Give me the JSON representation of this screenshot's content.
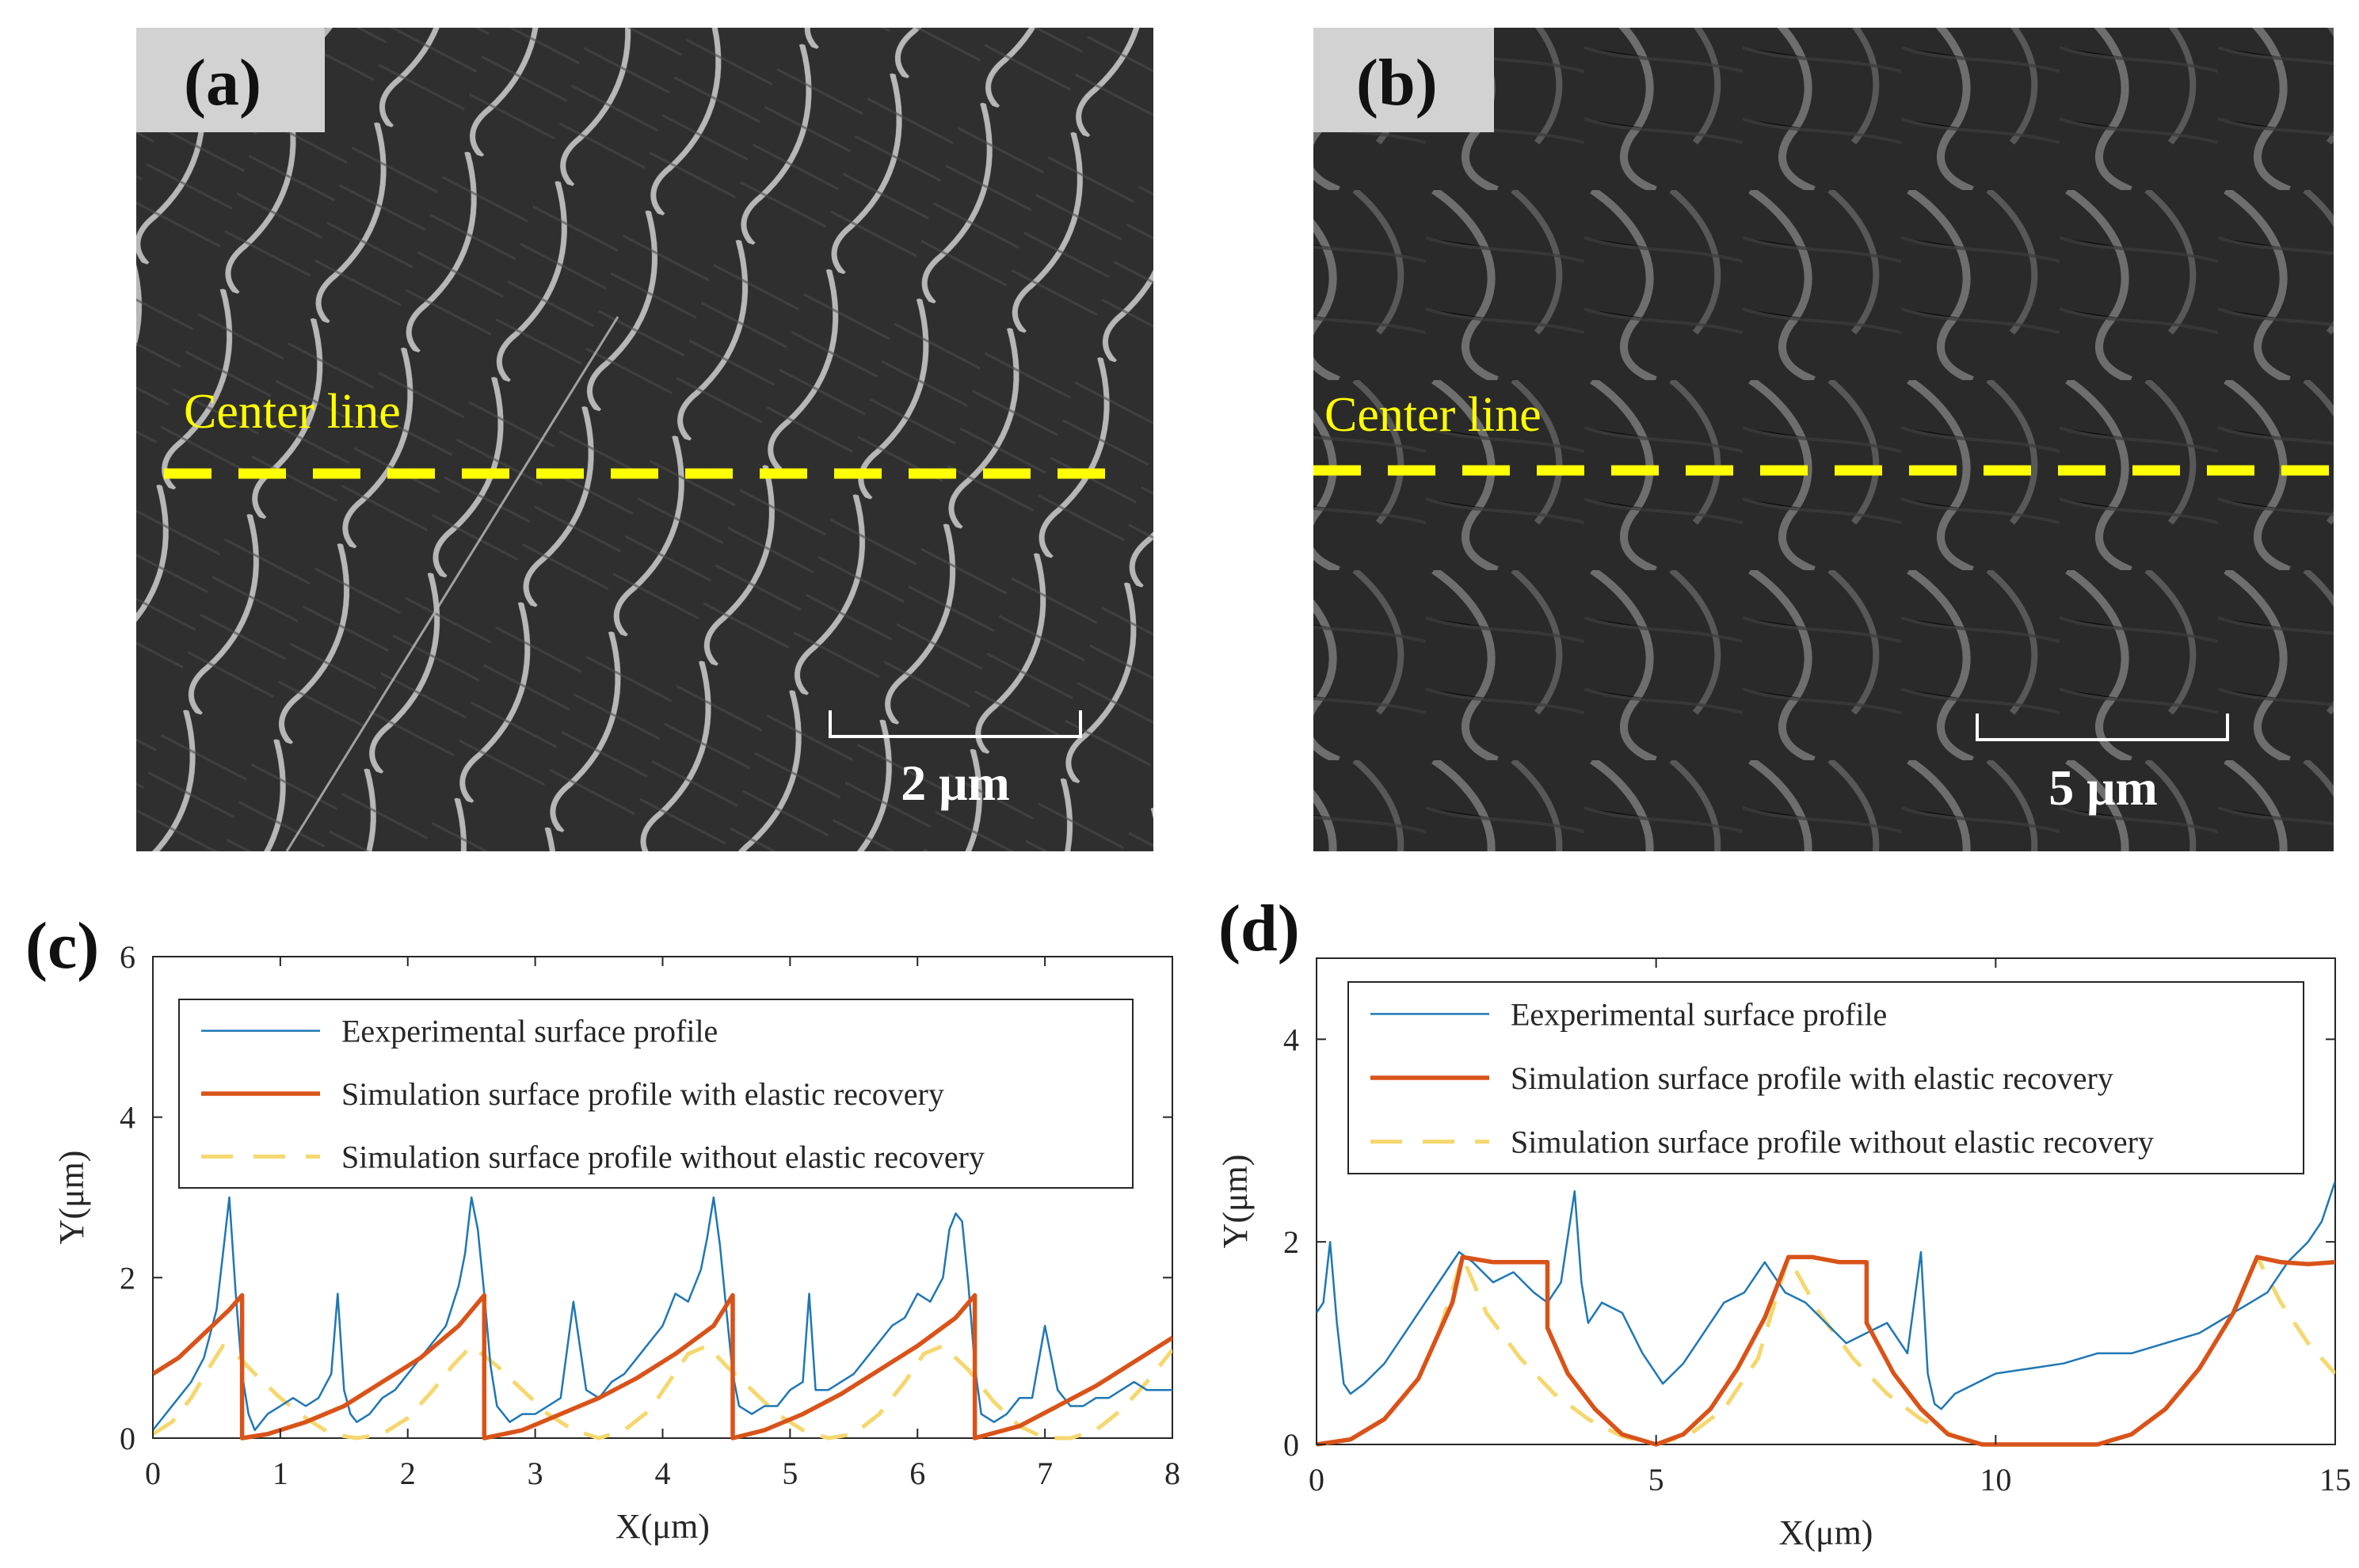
{
  "panels": {
    "a": {
      "label": "(a)",
      "center_line_label": "Center line",
      "scale_bar_label": "2 μm"
    },
    "b": {
      "label": "(b)",
      "center_line_label": "Center line",
      "scale_bar_label": "5 μm"
    },
    "c": {
      "label": "(c)"
    },
    "d": {
      "label": "(d)"
    }
  },
  "colors": {
    "experimental": "#1f77b4",
    "sim_elastic": "#d95319",
    "sim_no_elastic": "#f5d76e",
    "center_line": "#ffff00",
    "sem_bg": "#2e2e2e"
  },
  "chart_data": [
    {
      "panel": "(c)",
      "type": "line",
      "xlabel": "X(μm)",
      "ylabel": "Y(μm)",
      "xlim": [
        0,
        8
      ],
      "ylim": [
        0,
        6
      ],
      "xticks": [
        0,
        1,
        2,
        3,
        4,
        5,
        6,
        7,
        8
      ],
      "yticks": [
        0,
        2,
        4,
        6
      ],
      "legend_position": "top",
      "series": [
        {
          "name": "Eexperimental surface profile",
          "style": "solid-thin",
          "x": [
            0,
            0.1,
            0.2,
            0.3,
            0.4,
            0.5,
            0.55,
            0.6,
            0.65,
            0.7,
            0.75,
            0.8,
            0.9,
            1.0,
            1.1,
            1.2,
            1.3,
            1.4,
            1.45,
            1.5,
            1.55,
            1.6,
            1.7,
            1.8,
            1.9,
            2.0,
            2.1,
            2.2,
            2.3,
            2.4,
            2.45,
            2.5,
            2.55,
            2.6,
            2.65,
            2.7,
            2.8,
            2.9,
            3.0,
            3.1,
            3.2,
            3.3,
            3.4,
            3.5,
            3.6,
            3.7,
            3.8,
            3.9,
            4.0,
            4.1,
            4.2,
            4.3,
            4.35,
            4.4,
            4.45,
            4.5,
            4.55,
            4.6,
            4.7,
            4.8,
            4.9,
            5.0,
            5.1,
            5.15,
            5.2,
            5.3,
            5.4,
            5.5,
            5.6,
            5.7,
            5.8,
            5.9,
            6.0,
            6.1,
            6.2,
            6.25,
            6.3,
            6.35,
            6.4,
            6.45,
            6.5,
            6.6,
            6.7,
            6.8,
            6.9,
            7.0,
            7.1,
            7.2,
            7.3,
            7.4,
            7.5,
            7.6,
            7.7,
            7.8,
            7.9,
            8.0
          ],
          "y": [
            0.1,
            0.3,
            0.5,
            0.7,
            1.0,
            1.6,
            2.3,
            3.0,
            1.8,
            0.8,
            0.3,
            0.1,
            0.3,
            0.4,
            0.5,
            0.4,
            0.5,
            0.8,
            1.8,
            0.6,
            0.3,
            0.2,
            0.3,
            0.5,
            0.6,
            0.8,
            1.0,
            1.2,
            1.4,
            1.9,
            2.3,
            3.0,
            2.6,
            1.8,
            0.9,
            0.4,
            0.2,
            0.3,
            0.3,
            0.4,
            0.5,
            1.7,
            0.6,
            0.5,
            0.7,
            0.8,
            1.0,
            1.2,
            1.4,
            1.8,
            1.7,
            2.1,
            2.5,
            3.0,
            2.4,
            1.6,
            0.8,
            0.4,
            0.3,
            0.4,
            0.4,
            0.6,
            0.7,
            1.8,
            0.6,
            0.6,
            0.7,
            0.8,
            1.0,
            1.2,
            1.4,
            1.5,
            1.8,
            1.7,
            2.0,
            2.6,
            2.8,
            2.7,
            1.9,
            0.9,
            0.3,
            0.2,
            0.3,
            0.5,
            0.5,
            1.4,
            0.6,
            0.4,
            0.4,
            0.5,
            0.5,
            0.6,
            0.7,
            0.6,
            0.6,
            0.6
          ]
        },
        {
          "name": "Simulation surface profile with elastic recovery",
          "style": "solid-thick",
          "x": [
            0,
            0.2,
            0.4,
            0.6,
            0.7,
            0.7,
            0.9,
            1.2,
            1.5,
            1.8,
            2.1,
            2.4,
            2.6,
            2.6,
            2.9,
            3.2,
            3.5,
            3.8,
            4.1,
            4.4,
            4.55,
            4.55,
            4.8,
            5.1,
            5.4,
            5.7,
            6.0,
            6.3,
            6.45,
            6.45,
            6.8,
            7.1,
            7.4,
            7.7,
            8.0
          ],
          "y": [
            0.8,
            1.0,
            1.3,
            1.6,
            1.78,
            0,
            0.05,
            0.2,
            0.4,
            0.7,
            1.0,
            1.4,
            1.78,
            0,
            0.1,
            0.3,
            0.5,
            0.75,
            1.05,
            1.4,
            1.78,
            0,
            0.1,
            0.3,
            0.55,
            0.85,
            1.15,
            1.5,
            1.78,
            0,
            0.15,
            0.4,
            0.65,
            0.95,
            1.25
          ]
        },
        {
          "name": "Simulation surface profile without elastic recovery",
          "style": "dashed",
          "x": [
            0,
            0.15,
            0.3,
            0.45,
            0.55,
            0.65,
            0.8,
            1.0,
            1.2,
            1.4,
            1.6,
            1.8,
            2.0,
            2.2,
            2.35,
            2.5,
            2.7,
            2.9,
            3.1,
            3.3,
            3.5,
            3.7,
            3.9,
            4.05,
            4.2,
            4.35,
            4.5,
            4.7,
            4.9,
            5.1,
            5.3,
            5.5,
            5.7,
            5.9,
            6.05,
            6.2,
            6.4,
            6.6,
            6.8,
            7.0,
            7.2,
            7.4,
            7.6,
            7.8,
            8.0
          ],
          "y": [
            0.05,
            0.2,
            0.5,
            0.9,
            1.15,
            1.05,
            0.8,
            0.5,
            0.25,
            0.05,
            0.0,
            0.05,
            0.25,
            0.6,
            0.9,
            1.15,
            0.9,
            0.6,
            0.3,
            0.1,
            0.0,
            0.1,
            0.35,
            0.7,
            1.05,
            1.15,
            0.9,
            0.6,
            0.3,
            0.1,
            0.0,
            0.05,
            0.3,
            0.7,
            1.05,
            1.15,
            0.85,
            0.45,
            0.15,
            0.0,
            0.0,
            0.1,
            0.35,
            0.7,
            1.1
          ]
        }
      ]
    },
    {
      "panel": "(d)",
      "type": "line",
      "xlabel": "X(μm)",
      "ylabel": "Y(μm)",
      "xlim": [
        0,
        15
      ],
      "ylim": [
        0,
        4.8
      ],
      "xticks": [
        0,
        5,
        10,
        15
      ],
      "yticks": [
        0,
        2,
        4
      ],
      "legend_position": "top",
      "series": [
        {
          "name": "Eexperimental surface profile",
          "style": "solid-thin",
          "x": [
            0,
            0.1,
            0.2,
            0.3,
            0.4,
            0.5,
            0.7,
            1.0,
            1.3,
            1.6,
            1.9,
            2.1,
            2.3,
            2.6,
            2.9,
            3.2,
            3.4,
            3.6,
            3.8,
            3.9,
            4.0,
            4.2,
            4.5,
            4.8,
            5.1,
            5.4,
            5.7,
            6.0,
            6.3,
            6.6,
            6.9,
            7.2,
            7.5,
            7.8,
            8.1,
            8.4,
            8.7,
            8.9,
            9.0,
            9.1,
            9.2,
            9.4,
            9.7,
            10.0,
            10.5,
            11.0,
            11.5,
            12.0,
            12.5,
            13.0,
            13.5,
            14.0,
            14.3,
            14.6,
            14.8,
            15.0
          ],
          "y": [
            1.3,
            1.4,
            2.0,
            1.2,
            0.6,
            0.5,
            0.6,
            0.8,
            1.1,
            1.4,
            1.7,
            1.9,
            1.8,
            1.6,
            1.7,
            1.5,
            1.4,
            1.6,
            2.5,
            1.6,
            1.2,
            1.4,
            1.3,
            0.9,
            0.6,
            0.8,
            1.1,
            1.4,
            1.5,
            1.8,
            1.5,
            1.4,
            1.2,
            1.0,
            1.1,
            1.2,
            0.9,
            1.9,
            0.7,
            0.4,
            0.35,
            0.5,
            0.6,
            0.7,
            0.75,
            0.8,
            0.9,
            0.9,
            1.0,
            1.1,
            1.3,
            1.5,
            1.8,
            2.0,
            2.2,
            2.6
          ]
        },
        {
          "name": "Simulation surface profile with elastic recovery",
          "style": "solid-thick",
          "x": [
            0,
            0.5,
            1.0,
            1.5,
            2.0,
            2.15,
            2.6,
            3.0,
            3.4,
            3.4,
            3.7,
            4.1,
            4.5,
            5.0,
            5.4,
            5.8,
            6.2,
            6.6,
            6.95,
            7.3,
            7.7,
            8.1,
            8.1,
            8.5,
            8.9,
            9.3,
            9.8,
            10.5,
            11.0,
            11.5,
            12.0,
            12.5,
            13.0,
            13.5,
            13.85,
            14.2,
            14.6,
            15.0
          ],
          "y": [
            0,
            0.05,
            0.25,
            0.65,
            1.4,
            1.85,
            1.8,
            1.8,
            1.8,
            1.15,
            0.7,
            0.35,
            0.1,
            0,
            0.1,
            0.35,
            0.75,
            1.25,
            1.85,
            1.85,
            1.8,
            1.8,
            1.2,
            0.7,
            0.35,
            0.1,
            0,
            0,
            0,
            0,
            0.1,
            0.35,
            0.75,
            1.3,
            1.85,
            1.8,
            1.78,
            1.8
          ]
        },
        {
          "name": "Simulation surface profile without elastic recovery",
          "style": "dashed",
          "x": [
            0,
            0.5,
            1.0,
            1.5,
            1.8,
            2.15,
            2.5,
            3.0,
            3.5,
            4.0,
            4.5,
            5.0,
            5.5,
            6.0,
            6.5,
            6.95,
            7.4,
            7.9,
            8.4,
            8.9,
            9.4,
            9.8,
            10.5,
            11.0,
            11.5,
            12.0,
            12.5,
            13.0,
            13.5,
            13.85,
            14.2,
            14.6,
            15.0
          ],
          "y": [
            0,
            0.05,
            0.25,
            0.65,
            1.1,
            1.85,
            1.3,
            0.85,
            0.5,
            0.25,
            0.08,
            0,
            0.1,
            0.35,
            0.85,
            1.85,
            1.3,
            0.85,
            0.5,
            0.25,
            0.08,
            0,
            0,
            0,
            0,
            0.1,
            0.35,
            0.75,
            1.3,
            1.85,
            1.4,
            1.0,
            0.7
          ]
        }
      ]
    }
  ]
}
